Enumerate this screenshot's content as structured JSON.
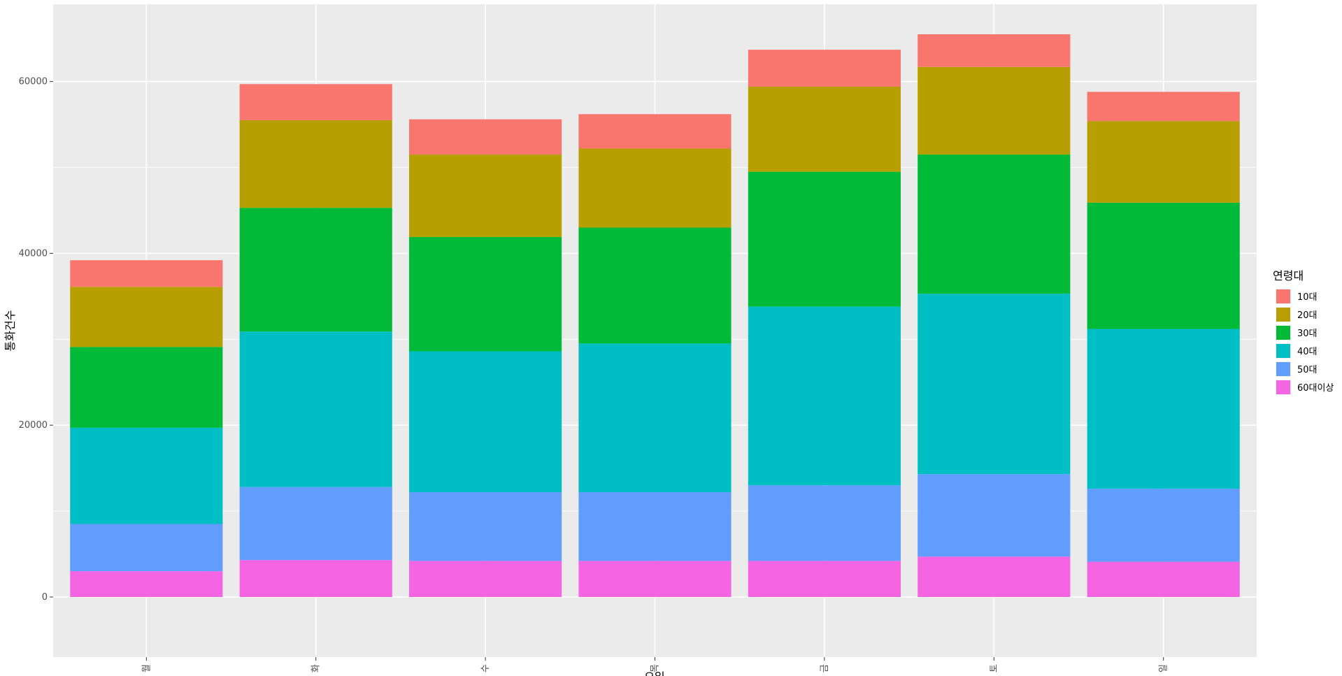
{
  "chart_data": {
    "type": "bar",
    "stacked": true,
    "title": "",
    "xlabel": "요일",
    "ylabel": "통화건수",
    "ylim": [
      -7000,
      69000
    ],
    "yticks": [
      0,
      20000,
      40000,
      60000
    ],
    "categories": [
      "월",
      "화",
      "수",
      "목",
      "금",
      "토",
      "일"
    ],
    "legend_title": "연령대",
    "legend_position": "right",
    "grid": true,
    "series": [
      {
        "name": "60대이상",
        "color": "#F564E3",
        "values": [
          3000,
          4300,
          4200,
          4200,
          4200,
          4700,
          4100
        ]
      },
      {
        "name": "50대",
        "color": "#619CFF",
        "values": [
          5500,
          8500,
          8000,
          8000,
          8800,
          9600,
          8500
        ]
      },
      {
        "name": "40대",
        "color": "#00BFC4",
        "values": [
          11200,
          18100,
          16400,
          17300,
          20800,
          21000,
          18600
        ]
      },
      {
        "name": "30대",
        "color": "#00BA38",
        "values": [
          9400,
          14400,
          13300,
          13500,
          15700,
          16200,
          14700
        ]
      },
      {
        "name": "20대",
        "color": "#B79F00",
        "values": [
          7000,
          10200,
          9600,
          9200,
          9900,
          10200,
          9500
        ]
      },
      {
        "name": "10대",
        "color": "#F8766D",
        "values": [
          3100,
          4200,
          4100,
          4000,
          4300,
          3800,
          3400
        ]
      }
    ],
    "legend_order": [
      "10대",
      "20대",
      "30대",
      "40대",
      "50대",
      "60대이상"
    ]
  }
}
